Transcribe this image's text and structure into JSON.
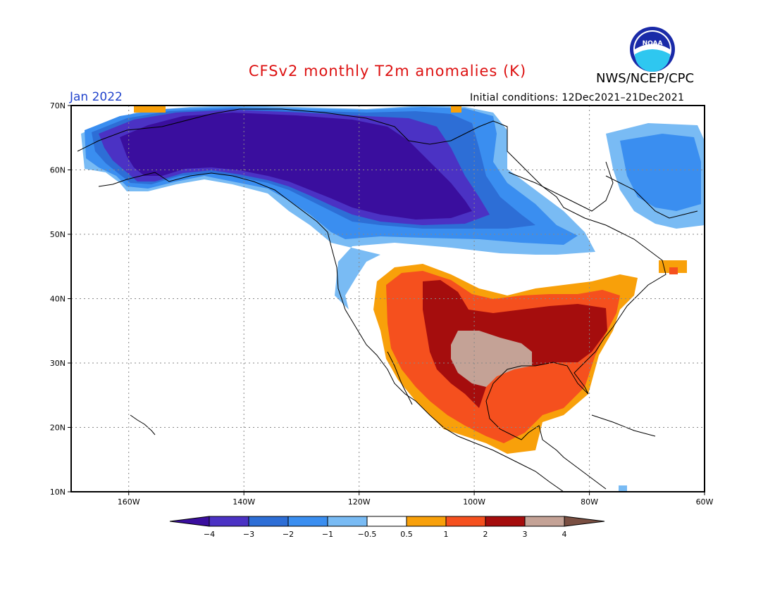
{
  "title": "CFSv2 monthly T2m anomalies (K)",
  "agency": "NWS/NCEP/CPC",
  "logo_text": "NOAA",
  "month_label": "Jan 2022",
  "init_conditions": "Initial conditions: 12Dec2021–21Dec2021",
  "map": {
    "lat_range": [
      10,
      70
    ],
    "lon_range": [
      -170,
      -60
    ],
    "lat_ticks": [
      "70N",
      "60N",
      "50N",
      "40N",
      "30N",
      "20N",
      "10N"
    ],
    "lon_ticks": [
      "160W",
      "140W",
      "120W",
      "100W",
      "80W",
      "60W"
    ]
  },
  "colorbar": {
    "labels": [
      "−4",
      "−3",
      "−2",
      "−1",
      "−0.5",
      "0.5",
      "1",
      "2",
      "3",
      "4"
    ],
    "colors": {
      "lt_-4": "#3a0e9e",
      "-4_-3": "#4b32c4",
      "-3_-2": "#2d6ed6",
      "-2_-1": "#3a8ef0",
      "-1_-0.5": "#79bbf4",
      "-0.5_0.5": "#ffffff",
      "0.5_1": "#f8a00a",
      "1_2": "#f5501e",
      "2_3": "#a50d0d",
      "3_4": "#c4a296",
      "gt_4": "#7a4f42"
    }
  }
}
